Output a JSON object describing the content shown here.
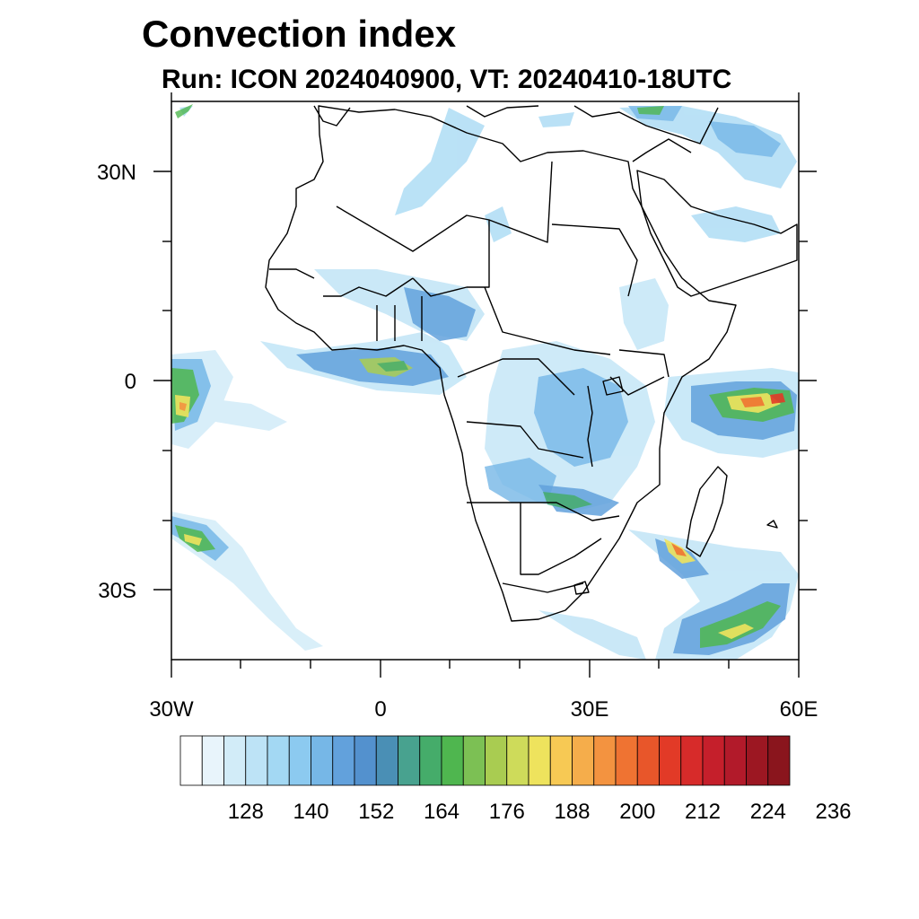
{
  "title": "Convection index",
  "subtitle": "Run: ICON 2024040900,  VT: 20240410-18UTC",
  "map": {
    "lat_labels": [
      "30N",
      "0",
      "30S"
    ],
    "lon_labels": [
      "30W",
      "0",
      "30E",
      "60E"
    ],
    "lon_range": [
      -30,
      60
    ],
    "lat_range": [
      -40,
      40
    ]
  },
  "colorbar": {
    "labels": [
      "128",
      "140",
      "152",
      "164",
      "176",
      "188",
      "200",
      "212",
      "224",
      "236"
    ],
    "colors": [
      "#ffffff",
      "#e8f4fb",
      "#d2ecf8",
      "#bde3f6",
      "#a3d8f3",
      "#8ccaf0",
      "#76b7e7",
      "#62a1dc",
      "#5391ce",
      "#4a8fb5",
      "#48a28f",
      "#45ac6a",
      "#4fb64f",
      "#7cc054",
      "#a9cc51",
      "#cedb5a",
      "#eee35d",
      "#f7c954",
      "#f5ad4b",
      "#f39340",
      "#ef7332",
      "#e8562a",
      "#e23a27",
      "#d72b2a",
      "#c51f2b",
      "#b21a2a",
      "#9c1722",
      "#8a151d"
    ]
  }
}
